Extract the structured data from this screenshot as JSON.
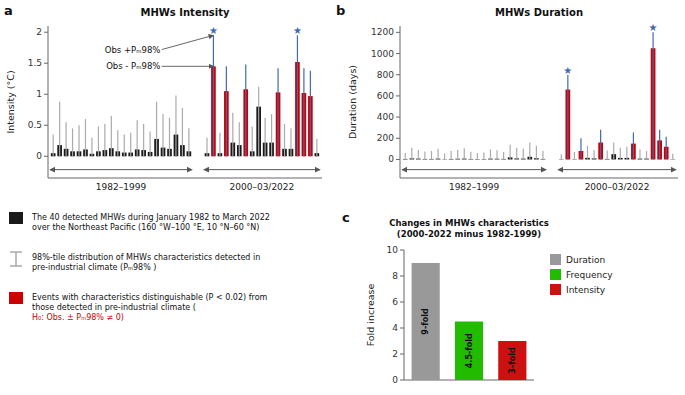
{
  "chart_data": [
    {
      "type": "bar",
      "panel_label": "a",
      "title": "MHWs Intensity",
      "y_label": "Intensity (°C)",
      "ylim": [
        -0.35,
        2.1
      ],
      "yticks": [
        0,
        0.5,
        1,
        1.5,
        2
      ],
      "grid": false,
      "series": [
        {
          "name": "1982–1999",
          "color": "#1a1a1a",
          "error_color": "#aaaaaa",
          "values": [
            0.05,
            0.18,
            0.12,
            0.08,
            0.08,
            0.11,
            0.04,
            0.08,
            0.1,
            0.13,
            0.08,
            0.06,
            0.06,
            0.11,
            0.1,
            0.07,
            0.28,
            0.14,
            0.12,
            0.35,
            0.18,
            0.08
          ],
          "error_top": [
            0.35,
            0.88,
            0.55,
            0.45,
            0.5,
            0.6,
            0.3,
            0.48,
            0.52,
            0.65,
            0.42,
            0.35,
            0.38,
            0.58,
            0.52,
            0.4,
            0.88,
            0.68,
            0.62,
            0.98,
            0.78,
            0.45
          ],
          "error_minus": [
            0.05,
            0.18,
            0.12,
            0.08,
            0.08,
            0.11,
            0.04,
            0.08,
            0.1,
            0.13,
            0.08,
            0.06,
            0.06,
            0.11,
            0.1,
            0.07,
            0.28,
            0.14,
            0.12,
            0.35,
            0.18,
            0.08
          ]
        },
        {
          "name": "2000–03/2022",
          "colors": [
            "#1a1a1a",
            "#cc0000",
            "#1a1a1a",
            "#cc0000",
            "#1a1a1a",
            "#1a1a1a",
            "#cc0000",
            "#1a1a1a",
            "#1a1a1a",
            "#1a1a1a",
            "#1a1a1a",
            "#cc0000",
            "#1a1a1a",
            "#1a1a1a",
            "#cc0000",
            "#cc0000",
            "#cc0000",
            "#1a1a1a"
          ],
          "error_colors": [
            "#aaaaaa",
            "#4169B0",
            "#aaaaaa",
            "#4169B0",
            "#aaaaaa",
            "#aaaaaa",
            "#4169B0",
            "#aaaaaa",
            "#aaaaaa",
            "#aaaaaa",
            "#aaaaaa",
            "#4169B0",
            "#aaaaaa",
            "#aaaaaa",
            "#4169B0",
            "#4169B0",
            "#4169B0",
            "#aaaaaa"
          ],
          "values": [
            0.05,
            1.45,
            0.05,
            1.05,
            0.22,
            0.18,
            1.08,
            0.08,
            0.8,
            0.22,
            0.22,
            1.03,
            0.12,
            0.12,
            1.52,
            1.02,
            0.97,
            0.05
          ],
          "error_top": [
            0.3,
            1.95,
            0.38,
            1.45,
            0.7,
            0.55,
            1.48,
            0.48,
            1.12,
            0.62,
            0.68,
            1.42,
            0.52,
            0.45,
            1.95,
            1.42,
            1.38,
            0.28
          ],
          "error_minus": [
            0.05,
            1.45,
            0.05,
            1.05,
            0.22,
            0.18,
            1.08,
            0.08,
            0.8,
            0.22,
            0.22,
            1.03,
            0.12,
            0.12,
            1.52,
            1.02,
            0.97,
            0.05
          ],
          "starred": [
            false,
            true,
            false,
            false,
            false,
            false,
            false,
            false,
            false,
            false,
            false,
            false,
            false,
            false,
            true,
            false,
            false,
            false
          ]
        }
      ],
      "star": "★",
      "star_color": "#4169B0",
      "annotations": [
        {
          "text": "Obs +Pₘ98%",
          "y": 1.72,
          "target_y": 1.95
        },
        {
          "text": "Obs - Pₘ98%",
          "y": 1.45,
          "target_y": 1.45
        }
      ],
      "key": [
        {
          "label": "The 40 detected MHWs during January 1982 to March 2022\nover the Northeast Pacific (160 °W–100 °E, 10 °N–60 °N)",
          "color": "#1a1a1a",
          "marker": "bar"
        },
        {
          "label": "98%-tile distribution of MHWs characteristics detected in\npre-industrial climate (Pₘ98% )",
          "color": "#aaaaaa",
          "marker": "error_bar"
        },
        {
          "label": "Events with characteristics distinguishable (P < 0.02) from\nthose detected in pre-industrial climate (",
          "color": "#cc0000",
          "marker": "bar",
          "highlight": "H₀: Obs. ± Pₘ98% ≠ 0)"
        }
      ]
    },
    {
      "type": "bar",
      "panel_label": "b",
      "title": "MHWs Duration",
      "y_label": "Duration (days)",
      "ylim": [
        -175,
        1260
      ],
      "yticks": [
        0,
        200,
        400,
        600,
        800,
        1000,
        1200
      ],
      "grid": false,
      "series": [
        {
          "name": "1982–1999",
          "color": "#1a1a1a",
          "error_color": "#aaaaaa",
          "values": [
            5,
            10,
            8,
            5,
            5,
            8,
            3,
            5,
            7,
            8,
            5,
            4,
            4,
            8,
            7,
            5,
            20,
            10,
            8,
            25,
            12,
            5
          ],
          "error_top": [
            60,
            110,
            90,
            75,
            80,
            100,
            55,
            80,
            90,
            105,
            72,
            60,
            65,
            95,
            88,
            70,
            140,
            110,
            100,
            160,
            130,
            80
          ],
          "error_minus": [
            5,
            10,
            8,
            5,
            5,
            8,
            3,
            5,
            7,
            8,
            5,
            4,
            4,
            8,
            7,
            5,
            20,
            10,
            8,
            25,
            12,
            5
          ]
        },
        {
          "name": "2000–03/2022",
          "colors": [
            "#1a1a1a",
            "#cc0000",
            "#1a1a1a",
            "#cc0000",
            "#1a1a1a",
            "#1a1a1a",
            "#cc0000",
            "#1a1a1a",
            "#1a1a1a",
            "#1a1a1a",
            "#1a1a1a",
            "#cc0000",
            "#1a1a1a",
            "#1a1a1a",
            "#cc0000",
            "#cc0000",
            "#cc0000",
            "#1a1a1a"
          ],
          "error_colors": [
            "#aaaaaa",
            "#4169B0",
            "#aaaaaa",
            "#4169B0",
            "#aaaaaa",
            "#aaaaaa",
            "#4169B0",
            "#aaaaaa",
            "#aaaaaa",
            "#aaaaaa",
            "#aaaaaa",
            "#4169B0",
            "#aaaaaa",
            "#aaaaaa",
            "#4169B0",
            "#4169B0",
            "#4169B0",
            "#aaaaaa"
          ],
          "values": [
            3,
            660,
            3,
            80,
            15,
            10,
            160,
            5,
            50,
            15,
            15,
            150,
            8,
            8,
            1050,
            180,
            120,
            3
          ],
          "error_top": [
            50,
            800,
            70,
            200,
            130,
            90,
            280,
            85,
            160,
            110,
            120,
            255,
            95,
            80,
            1200,
            280,
            215,
            55
          ],
          "error_minus": [
            3,
            660,
            3,
            80,
            15,
            10,
            160,
            5,
            50,
            15,
            15,
            150,
            8,
            8,
            1050,
            180,
            120,
            3
          ],
          "starred": [
            false,
            true,
            false,
            false,
            false,
            false,
            false,
            false,
            false,
            false,
            false,
            false,
            false,
            false,
            true,
            false,
            false,
            false
          ]
        }
      ],
      "star": "★",
      "star_color": "#4169B0"
    },
    {
      "type": "bar",
      "panel_label": "c",
      "title": "Changes in MHWs characteristics\n(2000-2022 minus 1982-1999)",
      "y_label": "Fold increase",
      "ylim": [
        0,
        10
      ],
      "yticks": [
        0,
        2,
        4,
        6,
        8,
        10
      ],
      "grid": false,
      "data_labels": true,
      "legend": "right",
      "series": [
        {
          "name": "Duration",
          "color": "#999999",
          "values": [
            9
          ],
          "value_labels": [
            "9-fold"
          ]
        },
        {
          "name": "Frequency",
          "color": "#22bb00",
          "values": [
            4.5
          ],
          "value_labels": [
            "4.5-fold"
          ]
        },
        {
          "name": "Intensity",
          "color": "#cc1111",
          "values": [
            3
          ],
          "value_labels": [
            "3-fold"
          ]
        }
      ]
    }
  ]
}
